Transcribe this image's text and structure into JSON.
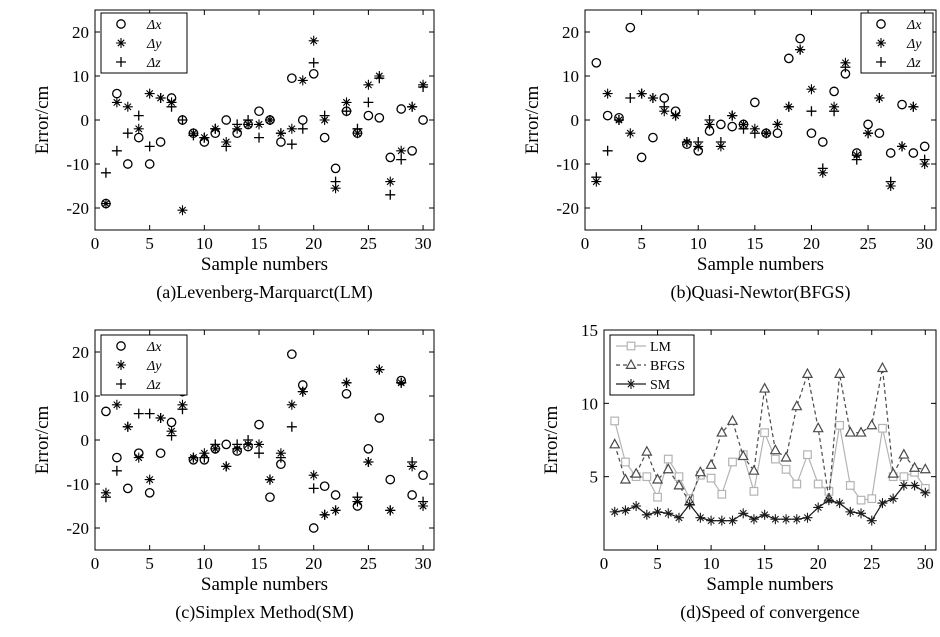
{
  "chart_data": [
    {
      "type": "scatter",
      "caption": "(a)Levenberg-Marquarct(LM)",
      "xlabel": "Sample numbers",
      "ylabel": "Error/cm",
      "xlim": [
        0,
        31
      ],
      "ylim": [
        -25,
        25
      ],
      "xticks": [
        0,
        5,
        10,
        15,
        20,
        25,
        30
      ],
      "yticks": [
        -20,
        -10,
        0,
        10,
        20
      ],
      "legend_position": "top-left",
      "series": [
        {
          "name": "Δx",
          "marker": "circle",
          "values": [
            -19,
            6,
            -10,
            -4,
            -10,
            -5,
            5,
            0,
            -3,
            -5,
            -3,
            0,
            -3,
            -1,
            2,
            0,
            -5,
            9.5,
            0,
            10.5,
            -4,
            -11,
            2,
            -3,
            1,
            0.5,
            -8.5,
            2.5,
            -7,
            0
          ]
        },
        {
          "name": "Δy",
          "marker": "star",
          "values": [
            -19,
            4,
            3,
            -2,
            6,
            5,
            4,
            -20.5,
            -3,
            -4,
            -2,
            -5,
            -2,
            -1,
            -1,
            0,
            -3,
            -2,
            9,
            18,
            0,
            -15.5,
            4,
            -3,
            8,
            10,
            -14,
            -7,
            3,
            8
          ]
        },
        {
          "name": "Δz",
          "marker": "plus",
          "values": [
            -12,
            -7,
            -3,
            1,
            -6,
            5,
            3,
            0,
            -3.5,
            -4,
            -2,
            -6,
            -1,
            0,
            -4,
            0,
            -3,
            -5.5,
            -2,
            13,
            1,
            -14,
            2,
            -2,
            4,
            9.5,
            -17,
            -9,
            3,
            7.5
          ]
        }
      ]
    },
    {
      "type": "scatter",
      "caption": "(b)Quasi-Newtor(BFGS)",
      "xlabel": "Sample numbers",
      "ylabel": "Error/cm",
      "xlim": [
        0,
        31
      ],
      "ylim": [
        -25,
        25
      ],
      "xticks": [
        0,
        5,
        10,
        15,
        20,
        25,
        30
      ],
      "yticks": [
        -20,
        -10,
        0,
        10,
        20
      ],
      "legend_position": "top-right",
      "series": [
        {
          "name": "Δx",
          "marker": "circle",
          "values": [
            13,
            1,
            0.5,
            21,
            -8.5,
            -4,
            5,
            2,
            -5.5,
            -7,
            -2.5,
            -1,
            -1.5,
            -1,
            4,
            -3,
            -3,
            14,
            18.5,
            -3,
            -5,
            6.5,
            10.5,
            -7.5,
            -1,
            -3,
            -7.5,
            3.5,
            -7.5,
            -6
          ]
        },
        {
          "name": "Δy",
          "marker": "star",
          "values": [
            -14,
            6,
            0,
            -3,
            6,
            5,
            2,
            1,
            -5,
            -6,
            -1,
            -6,
            1,
            -1,
            -2,
            -3,
            -1,
            3,
            16,
            7,
            -12,
            3,
            13,
            -8,
            -3,
            5,
            -15,
            -6,
            3,
            -10
          ]
        },
        {
          "name": "Δz",
          "marker": "plus",
          "values": [
            -13,
            -7,
            0,
            5,
            6,
            5,
            3,
            1,
            -5,
            -5,
            0,
            -5,
            1,
            -2,
            -3,
            -3,
            -1,
            3,
            16,
            2,
            -11,
            2,
            12,
            -9,
            -3,
            5,
            -14,
            -6,
            3,
            -9
          ]
        }
      ]
    },
    {
      "type": "scatter",
      "caption": "(c)Simplex Method(SM)",
      "xlabel": "Sample numbers",
      "ylabel": "Error/cm",
      "xlim": [
        0,
        31
      ],
      "ylim": [
        -25,
        25
      ],
      "xticks": [
        0,
        5,
        10,
        15,
        20,
        25,
        30
      ],
      "yticks": [
        -20,
        -10,
        0,
        10,
        20
      ],
      "legend_position": "top-left",
      "series": [
        {
          "name": "Δx",
          "marker": "circle",
          "values": [
            6.5,
            -4,
            -11,
            -3,
            -12,
            -3,
            4,
            11,
            -4.5,
            -4.5,
            -2,
            -1,
            -2.5,
            -1.5,
            3.5,
            -13,
            -5.5,
            19.5,
            12.5,
            -20,
            -10.5,
            -12.5,
            10.5,
            -15,
            -2,
            5,
            -9,
            13.5,
            -12.5,
            -8
          ]
        },
        {
          "name": "Δy",
          "marker": "star",
          "values": [
            -12,
            8,
            3,
            -4,
            -9,
            5,
            2,
            8,
            -4,
            -3,
            -2,
            -6,
            -2,
            -1,
            -1,
            -9,
            -3,
            8,
            11,
            -8,
            -17,
            -16,
            13,
            -14,
            -5,
            16,
            -16,
            13,
            -6,
            -15
          ]
        },
        {
          "name": "Δz",
          "marker": "plus",
          "values": [
            -13,
            -7,
            3,
            6,
            6,
            5,
            1,
            7,
            -4,
            -4,
            -1,
            -6,
            -1,
            0,
            -3,
            -9,
            -4,
            3,
            11,
            -11,
            -17,
            -16,
            13,
            -13,
            -5,
            16,
            -16,
            13,
            -5,
            -14
          ]
        }
      ]
    },
    {
      "type": "line",
      "caption": "(d)Speed of convergence",
      "xlabel": "Sample numbers",
      "ylabel": "Error/cm",
      "xlim": [
        0,
        31
      ],
      "ylim": [
        0,
        15
      ],
      "xticks": [
        0,
        5,
        10,
        15,
        20,
        25,
        30
      ],
      "yticks": [
        5,
        10,
        15
      ],
      "legend_position": "top-left",
      "x": [
        1,
        2,
        3,
        4,
        5,
        6,
        7,
        8,
        9,
        10,
        11,
        12,
        13,
        14,
        15,
        16,
        17,
        18,
        19,
        20,
        21,
        22,
        23,
        24,
        25,
        26,
        27,
        28,
        29,
        30
      ],
      "series": [
        {
          "name": "LM",
          "marker": "square",
          "line": "solid",
          "color": "#b4b4b4",
          "values": [
            8.8,
            6,
            5,
            5,
            3.6,
            6.2,
            5,
            3.5,
            5.1,
            4.9,
            3.8,
            6,
            6.5,
            4,
            8,
            6.2,
            5.5,
            4.5,
            6.5,
            4.5,
            4,
            8.5,
            4.4,
            3.4,
            3.5,
            8.3,
            5,
            5,
            5.3,
            4.2
          ]
        },
        {
          "name": "BFGS",
          "marker": "triangle",
          "line": "dashed",
          "color": "#4a4a4a",
          "values": [
            7.2,
            4.8,
            5.2,
            6.7,
            4.8,
            5.5,
            4.4,
            3.3,
            5.3,
            5.8,
            8,
            8.8,
            6.4,
            5.4,
            11,
            6.8,
            6.3,
            9.8,
            12,
            8.3,
            3.5,
            12,
            8,
            8,
            8.5,
            12.4,
            5.2,
            6.5,
            5.6,
            5.5
          ]
        },
        {
          "name": "SM",
          "marker": "star",
          "line": "solid",
          "color": "#1a1a1a",
          "values": [
            2.6,
            2.7,
            3,
            2.4,
            2.6,
            2.5,
            2.2,
            3.1,
            2.2,
            2,
            2,
            2,
            2.5,
            2.1,
            2.4,
            2.1,
            2.1,
            2.1,
            2.2,
            2.9,
            3.4,
            3.2,
            2.6,
            2.5,
            2,
            3.2,
            3.5,
            4.4,
            4.4,
            3.9
          ]
        }
      ]
    }
  ]
}
